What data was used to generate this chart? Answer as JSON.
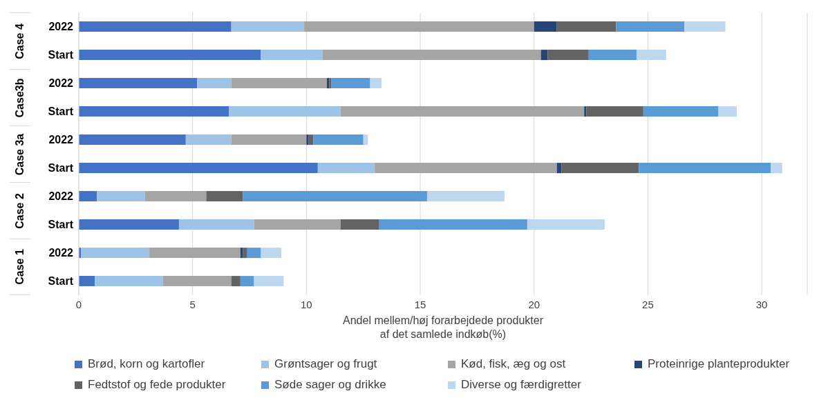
{
  "chart_data": {
    "type": "bar",
    "orientation": "horizontal",
    "stacked": true,
    "categories": [
      "2022",
      "Start",
      "2022",
      "Start",
      "2022",
      "Start",
      "2022",
      "Start",
      "2022",
      "Start"
    ],
    "annotations": [
      "Case 4",
      "Case3b",
      "Case 3a",
      "Case 2",
      "Case 1"
    ],
    "series": [
      {
        "name": "Brød, korn og kartofler",
        "color": "#4472c4",
        "values": [
          6.7,
          8.0,
          5.2,
          6.6,
          4.7,
          10.5,
          0.8,
          4.4,
          0.1,
          0.7
        ]
      },
      {
        "name": "Grøntsager og frugt",
        "color": "#9dc3e6",
        "values": [
          3.2,
          2.7,
          1.5,
          4.9,
          2.0,
          2.5,
          2.1,
          3.3,
          3.0,
          3.0
        ]
      },
      {
        "name": "Kød, fisk, æg og ost",
        "color": "#a5a5a5",
        "values": [
          10.1,
          9.6,
          4.2,
          10.7,
          3.3,
          8.0,
          2.7,
          3.8,
          4.0,
          3.0
        ]
      },
      {
        "name": "Proteinrige planteprodukter",
        "color": "#264478",
        "values": [
          1.0,
          0.3,
          0.1,
          0.1,
          0.1,
          0.2,
          0,
          0,
          0.1,
          0
        ]
      },
      {
        "name": "Fedtstof og fede produkter",
        "color": "#636363",
        "values": [
          2.6,
          1.8,
          0.1,
          2.5,
          0.2,
          3.4,
          1.6,
          1.7,
          0.2,
          0.4
        ]
      },
      {
        "name": "Søde sager og drikke",
        "color": "#5b9bd5",
        "values": [
          3.0,
          2.1,
          1.7,
          3.3,
          2.2,
          5.8,
          8.1,
          6.5,
          0.6,
          0.6
        ]
      },
      {
        "name": "Diverse og færdigretter",
        "color": "#bdd7ee",
        "values": [
          1.8,
          1.3,
          0.5,
          0.8,
          0.2,
          0.5,
          3.4,
          3.4,
          0.9,
          1.3
        ]
      }
    ],
    "xlabel": "Andel mellem/høj forarbejdede produkter\naf det samlede indkøb(%)",
    "xlim": [
      0,
      32
    ],
    "xticks": [
      0,
      5,
      10,
      15,
      20,
      25,
      30
    ],
    "grid": "x",
    "legend": "bottom"
  }
}
